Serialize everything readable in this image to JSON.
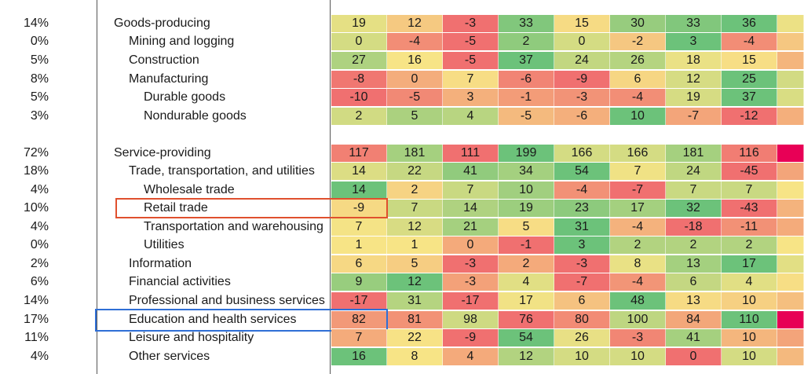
{
  "colors": {
    "negative": "#f07070",
    "neutral": "#f7e486",
    "positive": "#6cc27a",
    "highlight_retail": "#e0502e",
    "highlight_education": "#2f6fd6"
  },
  "chart_data": {
    "type": "heatmap",
    "rows": [
      {
        "share": "14%",
        "label": "Goods-producing",
        "indent": 0,
        "values": [
          19,
          12,
          -3,
          33,
          15,
          30,
          33,
          36
        ],
        "highlight": null
      },
      {
        "share": "0%",
        "label": "Mining and logging",
        "indent": 1,
        "values": [
          0,
          -4,
          -5,
          2,
          0,
          -2,
          3,
          -4
        ],
        "highlight": null
      },
      {
        "share": "5%",
        "label": "Construction",
        "indent": 1,
        "values": [
          27,
          16,
          -5,
          37,
          24,
          26,
          18,
          15
        ],
        "highlight": null
      },
      {
        "share": "8%",
        "label": "Manufacturing",
        "indent": 1,
        "values": [
          -8,
          0,
          7,
          -6,
          -9,
          6,
          12,
          25
        ],
        "highlight": null
      },
      {
        "share": "5%",
        "label": "Durable goods",
        "indent": 2,
        "values": [
          -10,
          -5,
          3,
          -1,
          -3,
          -4,
          19,
          37
        ],
        "highlight": null
      },
      {
        "share": "3%",
        "label": "Nondurable goods",
        "indent": 2,
        "values": [
          2,
          5,
          4,
          -5,
          -6,
          10,
          -7,
          -12
        ],
        "highlight": null
      },
      {
        "share": "72%",
        "label": "Service-providing",
        "indent": 0,
        "values": [
          117,
          181,
          111,
          199,
          166,
          166,
          181,
          116
        ],
        "highlight": null
      },
      {
        "share": "18%",
        "label": "Trade, transportation, and utilities",
        "indent": 1,
        "values": [
          14,
          22,
          41,
          34,
          54,
          7,
          24,
          -45
        ],
        "highlight": null
      },
      {
        "share": "4%",
        "label": "Wholesale trade",
        "indent": 2,
        "values": [
          14,
          2,
          7,
          10,
          -4,
          -7,
          7,
          7
        ],
        "highlight": null
      },
      {
        "share": "10%",
        "label": "Retail trade",
        "indent": 2,
        "values": [
          -9,
          7,
          14,
          19,
          23,
          17,
          32,
          -43
        ],
        "highlight": "retail"
      },
      {
        "share": "4%",
        "label": "Transportation and warehousing",
        "indent": 2,
        "values": [
          7,
          12,
          21,
          5,
          31,
          -4,
          -18,
          -11
        ],
        "highlight": null
      },
      {
        "share": "0%",
        "label": "Utilities",
        "indent": 2,
        "values": [
          1,
          1,
          0,
          -1,
          3,
          2,
          2,
          2
        ],
        "highlight": null
      },
      {
        "share": "2%",
        "label": "Information",
        "indent": 1,
        "values": [
          6,
          5,
          -3,
          2,
          -3,
          8,
          13,
          17
        ],
        "highlight": null
      },
      {
        "share": "6%",
        "label": "Financial activities",
        "indent": 1,
        "values": [
          9,
          12,
          -3,
          4,
          -7,
          -4,
          6,
          4
        ],
        "highlight": null
      },
      {
        "share": "14%",
        "label": "Professional and business services",
        "indent": 1,
        "values": [
          -17,
          31,
          -17,
          17,
          6,
          48,
          13,
          10
        ],
        "highlight": null
      },
      {
        "share": "17%",
        "label": "Education and health services",
        "indent": 1,
        "values": [
          82,
          81,
          98,
          76,
          80,
          100,
          84,
          110
        ],
        "highlight": "education"
      },
      {
        "share": "11%",
        "label": "Leisure and hospitality",
        "indent": 1,
        "values": [
          7,
          22,
          -9,
          54,
          26,
          -3,
          41,
          10
        ],
        "highlight": null
      },
      {
        "share": "4%",
        "label": "Other services",
        "indent": 1,
        "values": [
          16,
          8,
          4,
          12,
          10,
          10,
          0,
          10
        ],
        "highlight": null
      }
    ]
  }
}
